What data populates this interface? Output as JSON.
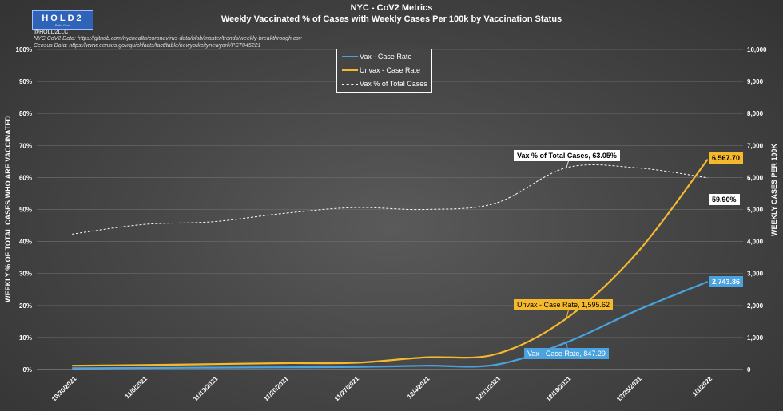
{
  "header": {
    "logo_text": "HOLD2",
    "logo_tagline": "Build Grow",
    "handle": "@HOLD2LLC",
    "source_1": "NYC CoV2 Data: https://github.com/nychealth/coronavirus-data/blob/master/trends/weekly-breakthrough.csv",
    "source_2": "Census Data: https://www.census.gov/quickfacts/fact/table/newyorkcitynewyork/PST045221",
    "title": "NYC - CoV2 Metrics",
    "subtitle": "Weekly Vaccinated % of Cases with Weekly Cases Per 100k by Vaccination Status"
  },
  "colors": {
    "vax": "#4aa3df",
    "unvax": "#f5b92e",
    "pct": "#ffffff"
  },
  "chart_data": {
    "type": "line",
    "title": "Weekly Vaccinated % of Cases with Weekly Cases Per 100k by Vaccination Status",
    "categories": [
      "10/30/2021",
      "11/6/2021",
      "11/13/2021",
      "11/20/2021",
      "11/27/2021",
      "12/4/2021",
      "12/11/2021",
      "12/18/2021",
      "12/25/2021",
      "1/1/2022"
    ],
    "y_left": {
      "label": "WEEKLY % OF TOTAL CASES WHO ARE VACCINATED",
      "ticks": [
        "0%",
        "10%",
        "20%",
        "30%",
        "40%",
        "50%",
        "60%",
        "70%",
        "80%",
        "90%",
        "100%"
      ],
      "range": [
        0,
        100
      ]
    },
    "y_right": {
      "label": "WEEKLY CASES PER 100K",
      "ticks": [
        "0",
        "1,000",
        "2,000",
        "3,000",
        "4,000",
        "5,000",
        "6,000",
        "7,000",
        "8,000",
        "9,000",
        "10,000"
      ],
      "range": [
        0,
        10000
      ]
    },
    "legend": {
      "placement": "top-center",
      "entries": [
        "Vax - Case Rate",
        "Unvax - Case Rate",
        "Vax % of Total Cases"
      ]
    },
    "series": [
      {
        "name": "Vax - Case Rate",
        "axis": "right",
        "style": "solid",
        "values": [
          40,
          50,
          60,
          70,
          80,
          120,
          150,
          847.29,
          1850,
          2743.86
        ]
      },
      {
        "name": "Unvax - Case Rate",
        "axis": "right",
        "style": "solid",
        "values": [
          120,
          140,
          170,
          200,
          210,
          380,
          480,
          1595.62,
          3650,
          6567.7
        ]
      },
      {
        "name": "Vax % of Total Cases",
        "axis": "left",
        "style": "dashed",
        "values": [
          42.3,
          45.3,
          46.2,
          48.8,
          50.6,
          50.0,
          52.0,
          63.05,
          63.0,
          59.9
        ]
      }
    ],
    "annotations": [
      {
        "text": "Vax % of Total Cases, 63.05%",
        "style": "white"
      },
      {
        "text": "59.90%",
        "style": "white"
      },
      {
        "text": "6,567.70",
        "style": "unvax"
      },
      {
        "text": "2,743.86",
        "style": "vax"
      },
      {
        "text": "Unvax - Case Rate, 1,595.62",
        "style": "unvax"
      },
      {
        "text": "Vax - Case Rate, 847.29",
        "style": "vax"
      }
    ],
    "grid": true
  }
}
